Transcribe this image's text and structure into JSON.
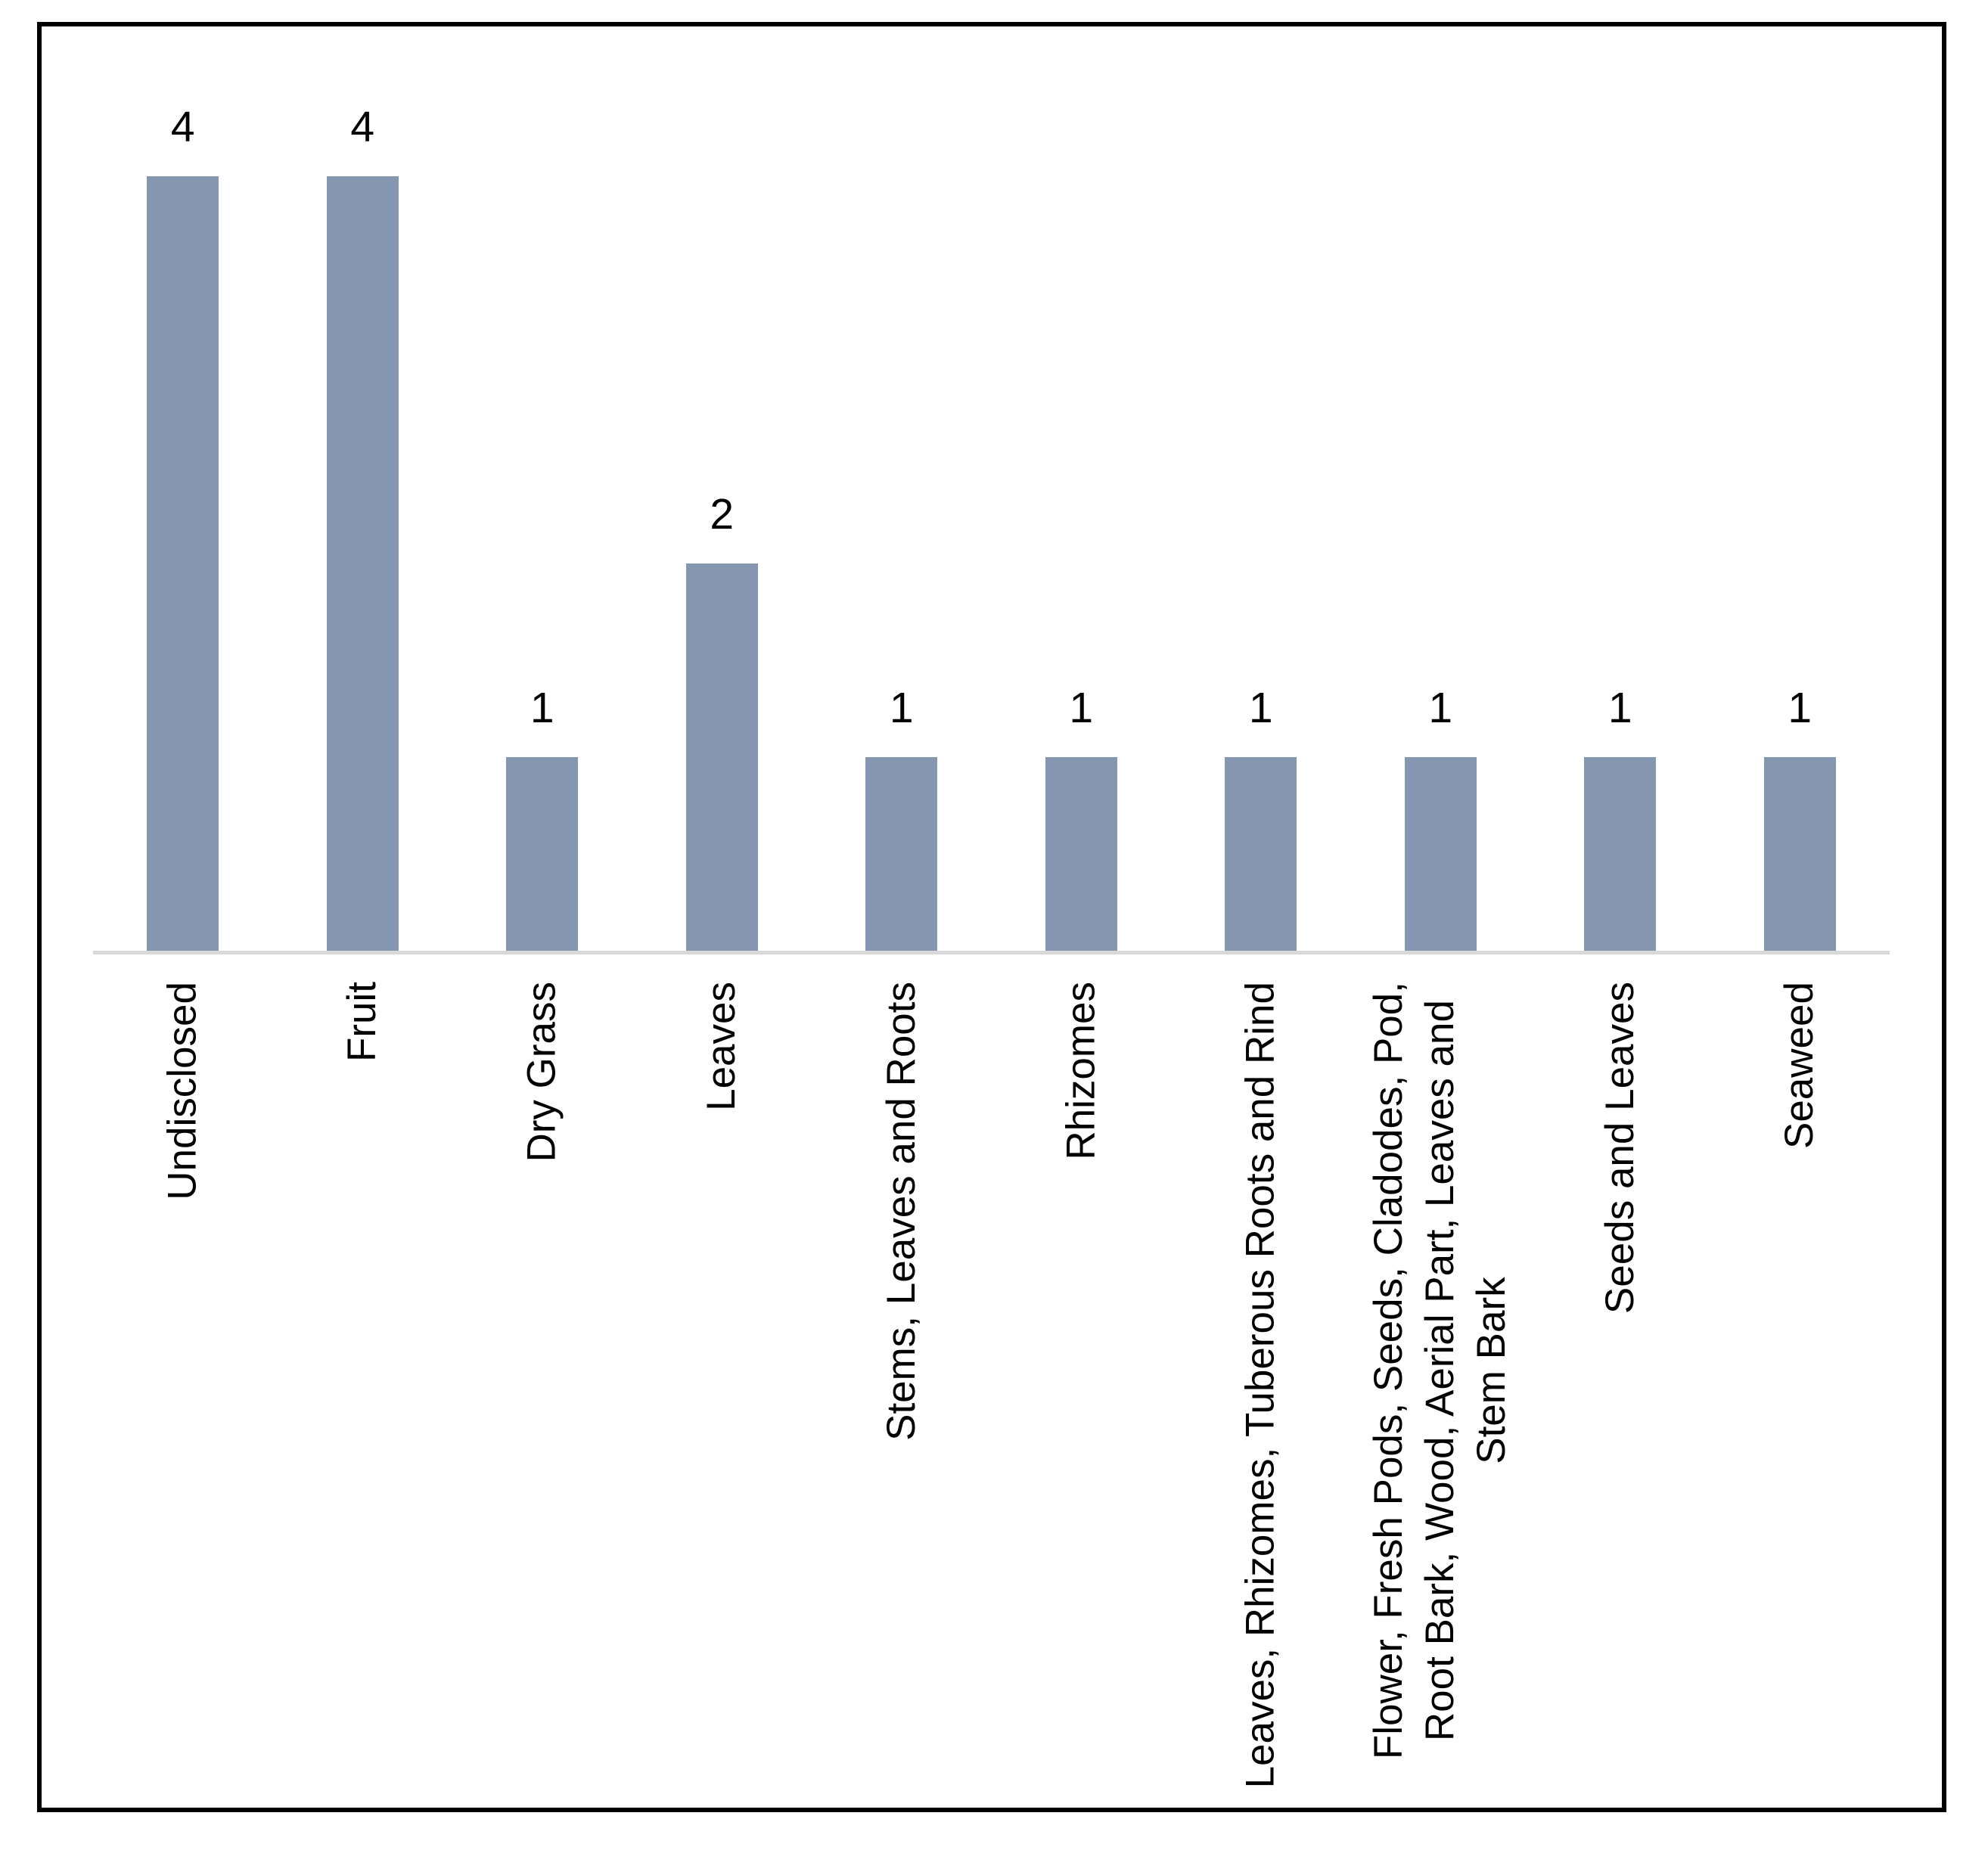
{
  "chart_data": {
    "type": "bar",
    "title": "",
    "xlabel": "",
    "ylabel": "",
    "categories": [
      "Undisclosed",
      "Fruit",
      "Dry Grass",
      "Leaves",
      "Stems, Leaves and Roots",
      "Rhizomes",
      "Leaves, Rhizomes, Tuberous Roots and Rind",
      "Flower, Fresh Pods, Seeds, Cladodes, Pod, Root Bark, Wood, Aerial Part, Leaves and Stem Bark",
      "Seeds and Leaves",
      "Seaweed"
    ],
    "category_label_text": [
      "Undisclosed",
      "Fruit",
      "Dry Grass",
      "Leaves",
      "Stems, Leaves and Roots",
      "Rhizomes",
      "Leaves, Rhizomes, Tuberous Roots and Rind",
      "Flower, Fresh Pods, Seeds, Cladodes, Pod,\nRoot Bark, Wood, Aerial Part, Leaves and\nStem Bark",
      "Seeds and Leaves",
      "Seaweed"
    ],
    "values": [
      4,
      4,
      1,
      2,
      1,
      1,
      1,
      1,
      1,
      1
    ],
    "data_labels": true,
    "data_label_position": "above-bar",
    "category_label_rotation_degrees": -90,
    "ylim": [
      0,
      4.3
    ],
    "grid": false,
    "legend": false,
    "bar_color": "#8496B0",
    "axis_line_color": "#D9D9D9",
    "text_color": "#000000",
    "frame_border_color": "#000000",
    "background_color": "#FFFFFF"
  }
}
